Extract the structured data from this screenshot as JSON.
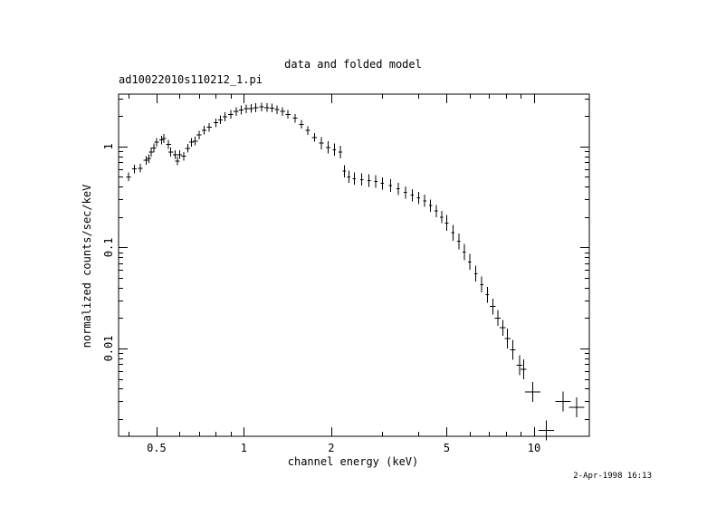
{
  "chart_data": {
    "type": "scatter",
    "title": "data and folded model",
    "subtitle": "ad10022010s110212_1.pi",
    "xlabel": "channel energy (keV)",
    "ylabel": "normalized counts/sec/keV",
    "xscale": "log",
    "yscale": "log",
    "xlim": [
      0.37,
      15.5
    ],
    "ylim": [
      0.00135,
      3.3
    ],
    "x_ticks": [
      0.5,
      1,
      2,
      5,
      10
    ],
    "x_tick_labels": [
      "0.5",
      "1",
      "2",
      "5",
      "10"
    ],
    "y_ticks": [
      1,
      0.1,
      0.01
    ],
    "y_tick_labels": [
      "1",
      "0.1",
      "0.01"
    ],
    "grid": false,
    "legend": "none",
    "timestamp": "2-Apr-1998 16:13",
    "series": [
      {
        "style": "crosses",
        "color": "#000000",
        "points": [
          [
            0.4,
            0.5
          ],
          [
            0.42,
            0.6
          ],
          [
            0.44,
            0.61
          ],
          [
            0.46,
            0.73
          ],
          [
            0.47,
            0.76
          ],
          [
            0.48,
            0.88
          ],
          [
            0.49,
            0.97
          ],
          [
            0.5,
            1.1
          ],
          [
            0.52,
            1.16
          ],
          [
            0.53,
            1.2
          ],
          [
            0.55,
            1.05
          ],
          [
            0.56,
            0.88
          ],
          [
            0.58,
            0.83
          ],
          [
            0.59,
            0.72
          ],
          [
            0.6,
            0.83
          ],
          [
            0.62,
            0.8
          ],
          [
            0.64,
            0.96
          ],
          [
            0.66,
            1.1
          ],
          [
            0.68,
            1.13
          ],
          [
            0.7,
            1.3
          ],
          [
            0.73,
            1.45
          ],
          [
            0.76,
            1.55
          ],
          [
            0.8,
            1.72
          ],
          [
            0.83,
            1.84
          ],
          [
            0.86,
            1.97
          ],
          [
            0.9,
            2.08
          ],
          [
            0.94,
            2.22
          ],
          [
            0.98,
            2.3
          ],
          [
            1.02,
            2.36
          ],
          [
            1.06,
            2.38
          ],
          [
            1.1,
            2.42
          ],
          [
            1.15,
            2.46
          ],
          [
            1.2,
            2.43
          ],
          [
            1.25,
            2.4
          ],
          [
            1.3,
            2.32
          ],
          [
            1.36,
            2.22
          ],
          [
            1.42,
            2.08
          ],
          [
            1.5,
            1.9
          ],
          [
            1.58,
            1.66
          ],
          [
            1.66,
            1.44
          ],
          [
            1.75,
            1.23
          ],
          [
            1.85,
            1.08
          ],
          [
            1.95,
            0.98
          ],
          [
            2.05,
            0.93
          ],
          [
            2.15,
            0.88
          ],
          [
            2.22,
            0.57
          ],
          [
            2.3,
            0.5
          ],
          [
            2.4,
            0.48
          ],
          [
            2.55,
            0.47
          ],
          [
            2.7,
            0.46
          ],
          [
            2.85,
            0.45
          ],
          [
            3.0,
            0.43
          ],
          [
            3.2,
            0.41
          ],
          [
            3.4,
            0.38
          ],
          [
            3.6,
            0.35
          ],
          [
            3.8,
            0.33
          ],
          [
            4.0,
            0.31
          ],
          [
            4.2,
            0.29
          ],
          [
            4.4,
            0.26
          ],
          [
            4.6,
            0.23
          ],
          [
            4.8,
            0.2
          ],
          [
            5.0,
            0.175
          ],
          [
            5.25,
            0.14
          ],
          [
            5.5,
            0.115
          ],
          [
            5.75,
            0.09
          ],
          [
            6.0,
            0.072
          ],
          [
            6.3,
            0.055
          ],
          [
            6.6,
            0.043
          ],
          [
            6.9,
            0.034
          ],
          [
            7.2,
            0.026
          ],
          [
            7.5,
            0.02
          ],
          [
            7.8,
            0.016
          ],
          [
            8.1,
            0.0125
          ],
          [
            8.45,
            0.0097
          ],
          [
            8.9,
            0.0068
          ],
          [
            9.2,
            0.0062
          ],
          [
            9.9,
            0.0037
          ],
          [
            11.0,
            0.00155
          ],
          [
            12.6,
            0.003
          ],
          [
            14.0,
            0.0026
          ]
        ]
      }
    ]
  }
}
